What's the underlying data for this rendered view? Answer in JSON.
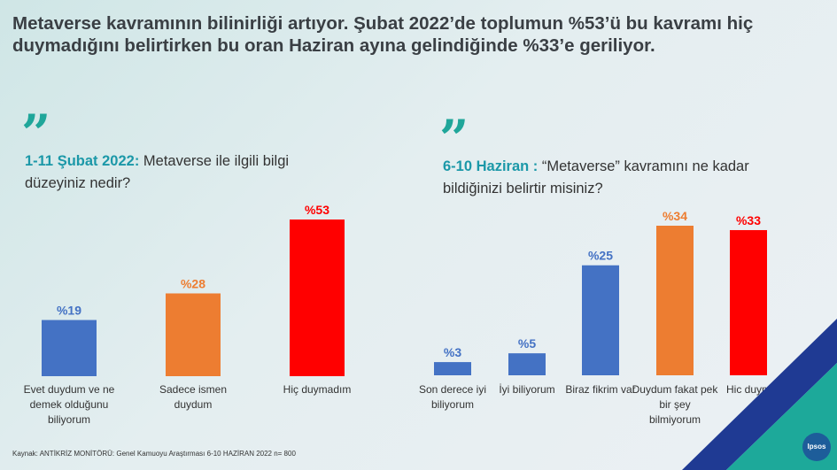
{
  "headline": "Metaverse kavramının bilinirliği artıyor. Şubat 2022’de toplumun %53’ü bu kavramı hiç duymadığını belirtirken bu oran Haziran ayına gelindiğinde %33’e geriliyor.",
  "left_question": {
    "quote_mark": "”",
    "period": "1-11 Şubat 2022:",
    "text": "Metaverse ile ilgili bilgi düzeyiniz nedir?"
  },
  "right_question": {
    "quote_mark": "”",
    "period": "6-10 Haziran :",
    "text": "“Metaverse” kavramını ne kadar bildiğinizi belirtir misiniz?"
  },
  "source": "Kaynak: ANTİKRİZ MONİTÖRÜ: Genel Kamuoyu Araştırması 6-10 HAZİRAN 2022 n= 800",
  "logo_text": "Ipsos",
  "chart_data": [
    {
      "type": "bar",
      "title": "",
      "categories": [
        "Evet duydum ve ne demek olduğunu biliyorum",
        "Sadece ismen duydum",
        "Hiç duymadım"
      ],
      "values": [
        19,
        28,
        53
      ],
      "value_labels": [
        "%19",
        "%28",
        "%53"
      ],
      "colors": [
        "#4472c4",
        "#ed7d31",
        "#ff0000"
      ],
      "ylim": [
        0,
        53
      ]
    },
    {
      "type": "bar",
      "title": "",
      "categories": [
        "Son derece iyi biliyorum",
        "İyi biliyorum",
        "Biraz fikrim var",
        "Duydum fakat pek bir şey bilmiyorum",
        "Hic duym"
      ],
      "values": [
        3,
        5,
        25,
        34,
        33
      ],
      "value_labels": [
        "%3",
        "%5",
        "%25",
        "%34",
        "%33"
      ],
      "colors": [
        "#4472c4",
        "#4472c4",
        "#4472c4",
        "#ed7d31",
        "#ff0000"
      ],
      "ylim": [
        0,
        34
      ]
    }
  ]
}
